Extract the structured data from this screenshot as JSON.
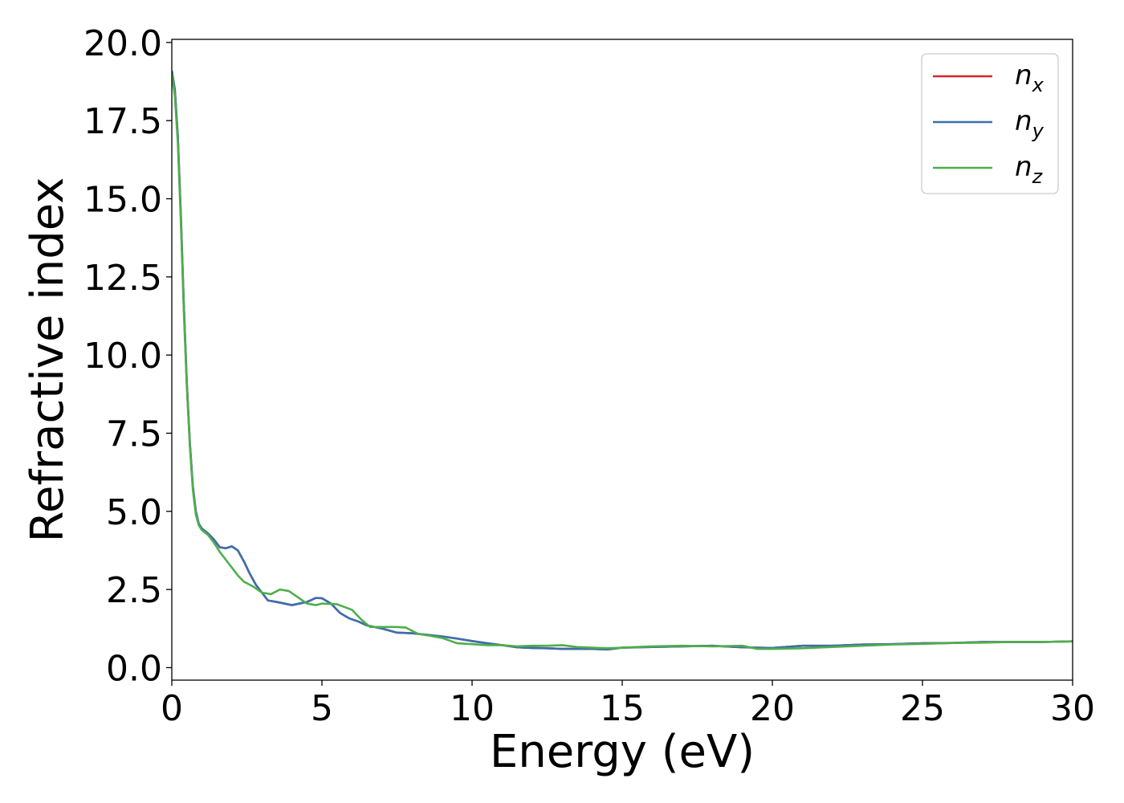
{
  "chart_data": {
    "type": "line",
    "title": "",
    "xlabel": "Energy (eV)",
    "ylabel": "Refractive index",
    "xlim": [
      0,
      30
    ],
    "ylim": [
      -0.4,
      20.1
    ],
    "xticks": [
      0,
      5,
      10,
      15,
      20,
      25,
      30
    ],
    "yticks": [
      0.0,
      2.5,
      5.0,
      7.5,
      10.0,
      12.5,
      15.0,
      17.5,
      20.0
    ],
    "xtick_labels": [
      "0",
      "5",
      "10",
      "15",
      "20",
      "25",
      "30"
    ],
    "ytick_labels": [
      "0.0",
      "2.5",
      "5.0",
      "7.5",
      "10.0",
      "12.5",
      "15.0",
      "17.5",
      "20.0"
    ],
    "grid": false,
    "legend_position": "top-right",
    "series": [
      {
        "name": "n",
        "subscript": "x",
        "color": "#d62728",
        "points": [
          [
            0,
            19.1
          ],
          [
            0.1,
            18.5
          ],
          [
            0.2,
            17.0
          ],
          [
            0.3,
            14.5
          ],
          [
            0.4,
            11.6
          ],
          [
            0.5,
            9.1
          ],
          [
            0.6,
            7.2
          ],
          [
            0.7,
            5.8
          ],
          [
            0.8,
            5.0
          ],
          [
            0.9,
            4.6
          ],
          [
            1.0,
            4.45
          ],
          [
            1.2,
            4.3
          ],
          [
            1.4,
            4.1
          ],
          [
            1.6,
            3.85
          ],
          [
            1.8,
            3.82
          ],
          [
            2.0,
            3.88
          ],
          [
            2.2,
            3.75
          ],
          [
            2.4,
            3.4
          ],
          [
            2.6,
            3.0
          ],
          [
            2.8,
            2.65
          ],
          [
            3.0,
            2.4
          ],
          [
            3.2,
            2.15
          ],
          [
            3.5,
            2.1
          ],
          [
            4.0,
            2.0
          ],
          [
            4.5,
            2.1
          ],
          [
            4.8,
            2.23
          ],
          [
            5.0,
            2.22
          ],
          [
            5.3,
            2.05
          ],
          [
            5.6,
            1.75
          ],
          [
            5.9,
            1.58
          ],
          [
            6.2,
            1.48
          ],
          [
            6.5,
            1.35
          ],
          [
            7.0,
            1.25
          ],
          [
            7.5,
            1.12
          ],
          [
            8.0,
            1.1
          ],
          [
            8.5,
            1.05
          ],
          [
            9.0,
            1.0
          ],
          [
            9.5,
            0.93
          ],
          [
            10,
            0.85
          ],
          [
            10.5,
            0.78
          ],
          [
            11,
            0.72
          ],
          [
            11.5,
            0.65
          ],
          [
            12,
            0.63
          ],
          [
            12.5,
            0.62
          ],
          [
            13,
            0.6
          ],
          [
            14,
            0.6
          ],
          [
            14.5,
            0.58
          ],
          [
            15,
            0.64
          ],
          [
            16,
            0.66
          ],
          [
            17,
            0.68
          ],
          [
            18,
            0.7
          ],
          [
            19,
            0.65
          ],
          [
            20,
            0.63
          ],
          [
            21,
            0.7
          ],
          [
            22,
            0.7
          ],
          [
            23,
            0.74
          ],
          [
            24,
            0.75
          ],
          [
            25,
            0.78
          ],
          [
            26,
            0.79
          ],
          [
            27,
            0.82
          ],
          [
            28,
            0.82
          ],
          [
            29,
            0.82
          ],
          [
            30,
            0.84
          ]
        ]
      },
      {
        "name": "n",
        "subscript": "y",
        "color": "#3a6fb0",
        "points": [
          [
            0,
            19.1
          ],
          [
            0.1,
            18.5
          ],
          [
            0.2,
            17.0
          ],
          [
            0.3,
            14.5
          ],
          [
            0.4,
            11.6
          ],
          [
            0.5,
            9.1
          ],
          [
            0.6,
            7.2
          ],
          [
            0.7,
            5.8
          ],
          [
            0.8,
            5.0
          ],
          [
            0.9,
            4.6
          ],
          [
            1.0,
            4.45
          ],
          [
            1.2,
            4.3
          ],
          [
            1.4,
            4.1
          ],
          [
            1.6,
            3.85
          ],
          [
            1.8,
            3.82
          ],
          [
            2.0,
            3.88
          ],
          [
            2.2,
            3.75
          ],
          [
            2.4,
            3.4
          ],
          [
            2.6,
            3.0
          ],
          [
            2.8,
            2.65
          ],
          [
            3.0,
            2.4
          ],
          [
            3.2,
            2.15
          ],
          [
            3.5,
            2.1
          ],
          [
            4.0,
            2.0
          ],
          [
            4.5,
            2.1
          ],
          [
            4.8,
            2.23
          ],
          [
            5.0,
            2.22
          ],
          [
            5.3,
            2.05
          ],
          [
            5.6,
            1.75
          ],
          [
            5.9,
            1.58
          ],
          [
            6.2,
            1.48
          ],
          [
            6.5,
            1.35
          ],
          [
            7.0,
            1.25
          ],
          [
            7.5,
            1.12
          ],
          [
            8.0,
            1.1
          ],
          [
            8.5,
            1.05
          ],
          [
            9.0,
            1.0
          ],
          [
            9.5,
            0.93
          ],
          [
            10,
            0.85
          ],
          [
            10.5,
            0.78
          ],
          [
            11,
            0.72
          ],
          [
            11.5,
            0.65
          ],
          [
            12,
            0.63
          ],
          [
            12.5,
            0.62
          ],
          [
            13,
            0.6
          ],
          [
            14,
            0.6
          ],
          [
            14.5,
            0.58
          ],
          [
            15,
            0.64
          ],
          [
            16,
            0.66
          ],
          [
            17,
            0.68
          ],
          [
            18,
            0.7
          ],
          [
            19,
            0.65
          ],
          [
            20,
            0.63
          ],
          [
            21,
            0.7
          ],
          [
            22,
            0.7
          ],
          [
            23,
            0.74
          ],
          [
            24,
            0.75
          ],
          [
            25,
            0.78
          ],
          [
            26,
            0.79
          ],
          [
            27,
            0.82
          ],
          [
            28,
            0.82
          ],
          [
            29,
            0.82
          ],
          [
            30,
            0.84
          ]
        ]
      },
      {
        "name": "n",
        "subscript": "z",
        "color": "#4daf4a",
        "points": [
          [
            0,
            19.0
          ],
          [
            0.1,
            18.3
          ],
          [
            0.2,
            16.8
          ],
          [
            0.3,
            14.3
          ],
          [
            0.4,
            11.4
          ],
          [
            0.5,
            9.0
          ],
          [
            0.6,
            7.1
          ],
          [
            0.7,
            5.7
          ],
          [
            0.8,
            4.9
          ],
          [
            0.9,
            4.55
          ],
          [
            1.0,
            4.4
          ],
          [
            1.2,
            4.25
          ],
          [
            1.4,
            4.0
          ],
          [
            1.6,
            3.7
          ],
          [
            1.8,
            3.45
          ],
          [
            2.0,
            3.2
          ],
          [
            2.2,
            2.95
          ],
          [
            2.4,
            2.75
          ],
          [
            2.7,
            2.6
          ],
          [
            3.0,
            2.4
          ],
          [
            3.3,
            2.35
          ],
          [
            3.6,
            2.5
          ],
          [
            3.9,
            2.45
          ],
          [
            4.2,
            2.25
          ],
          [
            4.5,
            2.05
          ],
          [
            4.8,
            2.0
          ],
          [
            5.0,
            2.05
          ],
          [
            5.5,
            2.03
          ],
          [
            6.0,
            1.85
          ],
          [
            6.3,
            1.55
          ],
          [
            6.6,
            1.3
          ],
          [
            7.0,
            1.3
          ],
          [
            7.5,
            1.3
          ],
          [
            7.8,
            1.28
          ],
          [
            8.2,
            1.08
          ],
          [
            8.6,
            1.02
          ],
          [
            9.0,
            0.95
          ],
          [
            9.5,
            0.78
          ],
          [
            10,
            0.75
          ],
          [
            10.5,
            0.72
          ],
          [
            11,
            0.72
          ],
          [
            11.5,
            0.68
          ],
          [
            12,
            0.7
          ],
          [
            12.5,
            0.7
          ],
          [
            13,
            0.72
          ],
          [
            13.5,
            0.66
          ],
          [
            14,
            0.64
          ],
          [
            14.5,
            0.62
          ],
          [
            15,
            0.64
          ],
          [
            16,
            0.68
          ],
          [
            17,
            0.7
          ],
          [
            18,
            0.68
          ],
          [
            19,
            0.7
          ],
          [
            19.5,
            0.6
          ],
          [
            20,
            0.6
          ],
          [
            21,
            0.62
          ],
          [
            22,
            0.66
          ],
          [
            23,
            0.7
          ],
          [
            24,
            0.74
          ],
          [
            25,
            0.76
          ],
          [
            26,
            0.79
          ],
          [
            27,
            0.8
          ],
          [
            28,
            0.82
          ],
          [
            29,
            0.82
          ],
          [
            30,
            0.84
          ]
        ]
      }
    ]
  }
}
